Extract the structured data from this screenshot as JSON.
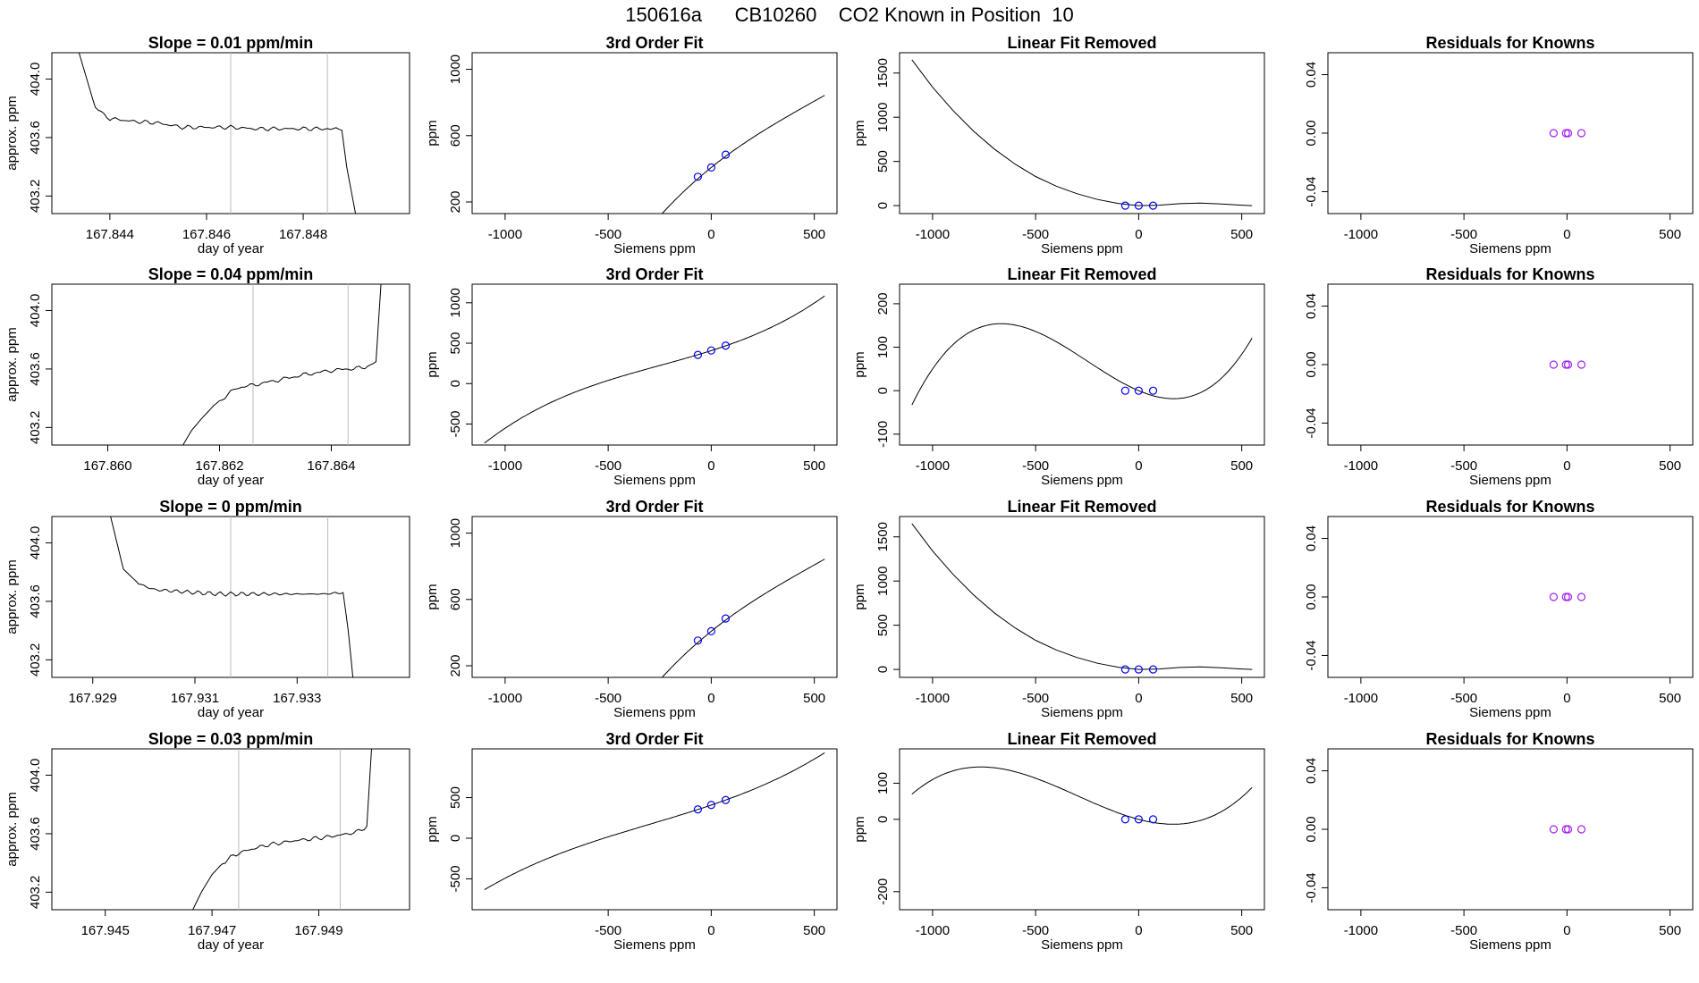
{
  "header": {
    "title": "150616a      CB10260    CO2 Known in Position  10"
  },
  "colors": {
    "axis": "#000000",
    "trace": "#000000",
    "vline": "#bbbbbb",
    "circle": "#0000ff",
    "residual": "#a020f0",
    "highlight": "#ff0000"
  },
  "chart_data": [
    {
      "type": "line",
      "row": 1,
      "panel": "time",
      "title": "Slope =  0.01  ppm/min",
      "xlabel": "day of year",
      "ylabel": "approx. ppm",
      "xlim": [
        167.8428,
        167.8502
      ],
      "ylim": [
        403.08,
        404.18
      ],
      "xticks": [
        167.844,
        167.846,
        167.848
      ],
      "xticklabels": [
        "167.844",
        "167.846",
        "167.848"
      ],
      "yticks": [
        403.2,
        403.6,
        404.0
      ],
      "yticklabels": [
        "403.2",
        "403.6",
        "404.0"
      ],
      "vlines": [
        167.8465,
        167.8485
      ],
      "series": [
        {
          "name": "trace",
          "x": [
            167.8433,
            167.8437,
            167.844,
            167.8445,
            167.845,
            167.8455,
            167.846,
            167.8465,
            167.847,
            167.8475,
            167.848,
            167.8485,
            167.8488,
            167.8489,
            167.8491
          ],
          "y": [
            404.25,
            403.8,
            403.73,
            403.71,
            403.7,
            403.67,
            403.67,
            403.67,
            403.66,
            403.66,
            403.66,
            403.66,
            403.65,
            403.4,
            403.05
          ]
        }
      ]
    },
    {
      "type": "line",
      "row": 1,
      "panel": "fit",
      "title": "3rd Order Fit",
      "xlabel": "Siemens ppm",
      "ylabel": "ppm",
      "xlim": [
        -1160,
        610
      ],
      "ylim": [
        130,
        1100
      ],
      "xticks": [
        -1000,
        -500,
        0,
        500
      ],
      "xticklabels": [
        "-1000",
        "-500",
        "0",
        "500"
      ],
      "yticks": [
        200,
        600,
        1000
      ],
      "yticklabels": [
        "200",
        "600",
        "1000"
      ],
      "cubic": [
        408,
        1,
        -0.0006,
        4e-07
      ],
      "curve_range": [
        -1100,
        550
      ],
      "points": {
        "x": [
          -65,
          0,
          70
        ],
        "y": [
          352,
          408,
          485
        ]
      }
    },
    {
      "type": "line",
      "row": 1,
      "panel": "linear",
      "title": "Linear Fit Removed",
      "xlabel": "Siemens ppm",
      "ylabel": "ppm",
      "xlim": [
        -1160,
        610
      ],
      "ylim": [
        -90,
        1730
      ],
      "xticks": [
        -1000,
        -500,
        0,
        500
      ],
      "xticklabels": [
        "-1000",
        "-500",
        "0",
        "500"
      ],
      "yticks": [
        0,
        500,
        1000,
        1500
      ],
      "yticklabels": [
        "0",
        "500",
        "1000",
        "1500"
      ],
      "curve": {
        "x": [
          -1100,
          -1000,
          -900,
          -800,
          -700,
          -600,
          -500,
          -400,
          -300,
          -200,
          -100,
          0,
          100,
          200,
          300,
          400,
          500,
          550
        ],
        "y": [
          1650,
          1340,
          1075,
          840,
          640,
          470,
          330,
          220,
          135,
          70,
          25,
          0,
          5,
          22,
          28,
          18,
          5,
          0
        ]
      },
      "points": {
        "x": [
          -65,
          0,
          70
        ],
        "y": [
          0,
          0,
          0
        ]
      }
    },
    {
      "type": "scatter",
      "row": 1,
      "panel": "residual",
      "title": "Residuals for Knowns",
      "xlabel": "Siemens ppm",
      "ylabel": "",
      "xlim": [
        -1160,
        610
      ],
      "ylim": [
        -0.055,
        0.055
      ],
      "xticks": [
        -1000,
        -500,
        0,
        500
      ],
      "xticklabels": [
        "-1000",
        "-500",
        "0",
        "500"
      ],
      "yticks": [
        -0.04,
        0.0,
        0.04
      ],
      "yticklabels": [
        "-0.04",
        "0.00",
        "0.04"
      ],
      "points": {
        "x": [
          -65,
          -5,
          5,
          70
        ],
        "y": [
          0,
          0,
          0,
          0
        ]
      }
    },
    {
      "type": "line",
      "row": 2,
      "panel": "time",
      "title": "Slope =  0.04  ppm/min",
      "xlabel": "day of year",
      "ylabel": "approx. ppm",
      "xlim": [
        167.859,
        167.8654
      ],
      "ylim": [
        403.08,
        404.18
      ],
      "xticks": [
        167.86,
        167.862,
        167.864
      ],
      "xticklabels": [
        "167.860",
        "167.862",
        "167.864"
      ],
      "yticks": [
        403.2,
        403.6,
        404.0
      ],
      "yticklabels": [
        "403.2",
        "403.6",
        "404.0"
      ],
      "vlines": [
        167.8626,
        167.8643
      ],
      "series": [
        {
          "name": "trace",
          "x": [
            167.8613,
            167.8615,
            167.8617,
            167.8619,
            167.8621,
            167.8623,
            167.8626,
            167.863,
            167.8635,
            167.864,
            167.8643,
            167.8646,
            167.8648,
            167.8649
          ],
          "y": [
            403.05,
            403.18,
            403.27,
            403.35,
            403.41,
            403.47,
            403.49,
            403.52,
            403.56,
            403.59,
            403.6,
            403.61,
            403.65,
            404.25
          ]
        }
      ]
    },
    {
      "type": "line",
      "row": 2,
      "panel": "fit",
      "title": "3rd Order Fit",
      "xlabel": "Siemens ppm",
      "ylabel": "ppm",
      "xlim": [
        -1160,
        610
      ],
      "ylim": [
        -760,
        1230
      ],
      "xticks": [
        -1000,
        -500,
        0,
        500
      ],
      "xticklabels": [
        "-1000",
        "-500",
        "0",
        "500"
      ],
      "yticks": [
        -500,
        0,
        500,
        1000
      ],
      "yticklabels": [
        "-500",
        "0",
        "500",
        "1000"
      ],
      "cubic": [
        408,
        0.81,
        0.00044,
        5.9e-07
      ],
      "curve_range": [
        -1100,
        550
      ],
      "points": {
        "x": [
          -65,
          0,
          70
        ],
        "y": [
          355,
          410,
          470
        ]
      }
    },
    {
      "type": "line",
      "row": 2,
      "panel": "linear",
      "title": "Linear Fit Removed",
      "xlabel": "Siemens ppm",
      "ylabel": "ppm",
      "xlim": [
        -1160,
        610
      ],
      "ylim": [
        -125,
        245
      ],
      "xticks": [
        -1000,
        -500,
        0,
        500
      ],
      "xticklabels": [
        "-1000",
        "-500",
        "0",
        "500"
      ],
      "yticks": [
        -100,
        0,
        100,
        200
      ],
      "yticklabels": [
        "-100",
        "0",
        "100",
        "200"
      ],
      "cubic": [
        0,
        -0.2,
        0.00044,
        5.9e-07
      ],
      "curve_range": [
        -1100,
        550
      ],
      "points": {
        "x": [
          -65,
          0,
          70
        ],
        "y": [
          0,
          0,
          0
        ]
      }
    },
    {
      "type": "scatter",
      "row": 2,
      "panel": "residual",
      "title": "Residuals for Knowns",
      "xlabel": "Siemens ppm",
      "ylabel": "",
      "xlim": [
        -1160,
        610
      ],
      "ylim": [
        -0.055,
        0.055
      ],
      "xticks": [
        -1000,
        -500,
        0,
        500
      ],
      "xticklabels": [
        "-1000",
        "-500",
        "0",
        "500"
      ],
      "yticks": [
        -0.04,
        0.0,
        0.04
      ],
      "yticklabels": [
        "-0.04",
        "0.00",
        "0.04"
      ],
      "points": {
        "x": [
          -65,
          -5,
          5,
          70
        ],
        "y": [
          0,
          0,
          0,
          0
        ]
      }
    },
    {
      "type": "line",
      "row": 3,
      "panel": "time",
      "title": "Slope =  0  ppm/min",
      "xlabel": "day of year",
      "ylabel": "approx. ppm",
      "xlim": [
        167.9282,
        167.9352
      ],
      "ylim": [
        403.08,
        404.18
      ],
      "xticks": [
        167.929,
        167.931,
        167.933
      ],
      "xticklabels": [
        "167.929",
        "167.931",
        "167.933"
      ],
      "yticks": [
        403.2,
        403.6,
        404.0
      ],
      "yticklabels": [
        "403.2",
        "403.6",
        "404.0"
      ],
      "vlines": [
        167.9317,
        167.9336
      ],
      "series": [
        {
          "name": "trace",
          "x": [
            167.9293,
            167.9296,
            167.9299,
            167.9302,
            167.9306,
            167.931,
            167.9315,
            167.932,
            167.9325,
            167.933,
            167.9335,
            167.9339,
            167.934,
            167.9341
          ],
          "y": [
            404.25,
            403.82,
            403.72,
            403.68,
            403.67,
            403.66,
            403.65,
            403.65,
            403.65,
            403.65,
            403.65,
            403.66,
            403.4,
            403.05
          ]
        }
      ]
    },
    {
      "type": "line",
      "row": 3,
      "panel": "fit",
      "title": "3rd Order Fit",
      "xlabel": "Siemens ppm",
      "ylabel": "ppm",
      "xlim": [
        -1160,
        610
      ],
      "ylim": [
        130,
        1100
      ],
      "xticks": [
        -1000,
        -500,
        0,
        500
      ],
      "xticklabels": [
        "-1000",
        "-500",
        "0",
        "500"
      ],
      "yticks": [
        200,
        600,
        1000
      ],
      "yticklabels": [
        "200",
        "600",
        "1000"
      ],
      "cubic": [
        408,
        1,
        -0.0006,
        4e-07
      ],
      "curve_range": [
        -1100,
        550
      ],
      "points": {
        "x": [
          -65,
          0,
          70
        ],
        "y": [
          352,
          408,
          485
        ]
      }
    },
    {
      "type": "line",
      "row": 3,
      "panel": "linear",
      "title": "Linear Fit Removed",
      "xlabel": "Siemens ppm",
      "ylabel": "ppm",
      "xlim": [
        -1160,
        610
      ],
      "ylim": [
        -90,
        1730
      ],
      "xticks": [
        -1000,
        -500,
        0,
        500
      ],
      "xticklabels": [
        "-1000",
        "-500",
        "0",
        "500"
      ],
      "yticks": [
        0,
        500,
        1000,
        1500
      ],
      "yticklabels": [
        "0",
        "500",
        "1000",
        "1500"
      ],
      "curve": {
        "x": [
          -1100,
          -1000,
          -900,
          -800,
          -700,
          -600,
          -500,
          -400,
          -300,
          -200,
          -100,
          0,
          100,
          200,
          300,
          400,
          500,
          550
        ],
        "y": [
          1650,
          1340,
          1075,
          840,
          640,
          470,
          330,
          220,
          135,
          70,
          25,
          0,
          5,
          22,
          28,
          18,
          5,
          0
        ]
      },
      "points": {
        "x": [
          -65,
          0,
          70
        ],
        "y": [
          0,
          0,
          0
        ]
      }
    },
    {
      "type": "scatter",
      "row": 3,
      "panel": "residual",
      "title": "Residuals for Knowns",
      "xlabel": "Siemens ppm",
      "ylabel": "",
      "xlim": [
        -1160,
        610
      ],
      "ylim": [
        -0.055,
        0.055
      ],
      "xticks": [
        -1000,
        -500,
        0,
        500
      ],
      "xticklabels": [
        "-1000",
        "-500",
        "0",
        "500"
      ],
      "yticks": [
        -0.04,
        0.0,
        0.04
      ],
      "yticklabels": [
        "-0.04",
        "0.00",
        "0.04"
      ],
      "points": {
        "x": [
          -65,
          -5,
          5,
          70
        ],
        "y": [
          0,
          0,
          0,
          0
        ]
      }
    },
    {
      "type": "line",
      "row": 4,
      "panel": "time",
      "title": "Slope =  0.03  ppm/min",
      "xlabel": "day of year",
      "ylabel": "approx. ppm",
      "xlim": [
        167.944,
        167.9507
      ],
      "ylim": [
        403.08,
        404.18
      ],
      "xticks": [
        167.945,
        167.947,
        167.949
      ],
      "xticklabels": [
        "167.945",
        "167.947",
        "167.949"
      ],
      "yticks": [
        403.2,
        403.6,
        404.0
      ],
      "yticklabels": [
        "403.2",
        "403.6",
        "404.0"
      ],
      "vlines": [
        167.9475,
        167.9494
      ],
      "series": [
        {
          "name": "trace",
          "x": [
            167.9466,
            167.9468,
            167.947,
            167.9472,
            167.9474,
            167.9476,
            167.948,
            167.9485,
            167.949,
            167.9494,
            167.9497,
            167.9499,
            167.95
          ],
          "y": [
            403.05,
            403.2,
            403.32,
            403.4,
            403.45,
            403.48,
            403.52,
            403.55,
            403.57,
            403.59,
            403.61,
            403.65,
            404.25
          ]
        }
      ]
    },
    {
      "type": "line",
      "row": 4,
      "panel": "fit",
      "title": "3rd Order Fit",
      "xlabel": "Siemens ppm",
      "ylabel": "ppm",
      "xlim": [
        -1160,
        610
      ],
      "ylim": [
        -880,
        1100
      ],
      "xticks": [
        -500,
        0,
        500
      ],
      "xticklabels": [
        "-500",
        "0",
        "500"
      ],
      "yticks": [
        -500,
        0,
        500
      ],
      "yticklabels": [
        "-500",
        "0",
        "500"
      ],
      "cubic": [
        408,
        0.86,
        0.00035,
        3.9e-07
      ],
      "curve_range": [
        -1100,
        550
      ],
      "points": {
        "x": [
          -65,
          0,
          70
        ],
        "y": [
          355,
          410,
          470
        ]
      }
    },
    {
      "type": "line",
      "row": 4,
      "panel": "linear",
      "title": "Linear Fit Removed",
      "xlabel": "Siemens ppm",
      "ylabel": "ppm",
      "xlim": [
        -1160,
        610
      ],
      "ylim": [
        -250,
        195
      ],
      "xticks": [
        -1000,
        -500,
        0,
        500
      ],
      "xticklabels": [
        "-1000",
        "-500",
        "0",
        "500"
      ],
      "yticks": [
        -200,
        0,
        100
      ],
      "yticklabels": [
        "-200",
        "0",
        "100"
      ],
      "cubic": [
        0,
        -0.15,
        0.00035,
        3.9e-07
      ],
      "curve_range": [
        -1100,
        550
      ],
      "points": {
        "x": [
          -65,
          0,
          70
        ],
        "y": [
          0,
          0,
          0
        ]
      }
    },
    {
      "type": "scatter",
      "row": 4,
      "panel": "residual",
      "title": "Residuals for Knowns",
      "xlabel": "Siemens ppm",
      "ylabel": "",
      "xlim": [
        -1160,
        610
      ],
      "ylim": [
        -0.055,
        0.055
      ],
      "xticks": [
        -1000,
        -500,
        0,
        500
      ],
      "xticklabels": [
        "-1000",
        "-500",
        "0",
        "500"
      ],
      "yticks": [
        -0.04,
        0.0,
        0.04
      ],
      "yticklabels": [
        "-0.04",
        "0.00",
        "0.04"
      ],
      "points": {
        "x": [
          -65,
          -5,
          5,
          70
        ],
        "y": [
          0,
          0,
          0,
          0
        ]
      }
    }
  ]
}
